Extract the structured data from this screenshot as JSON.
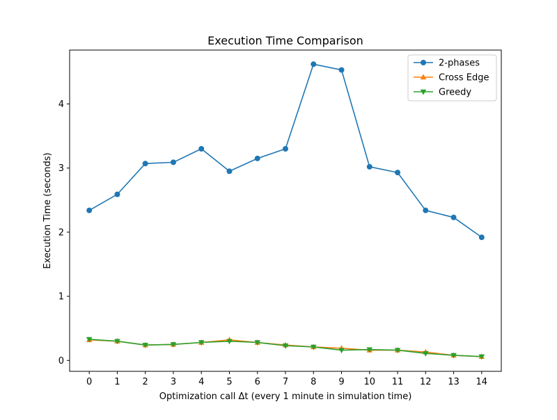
{
  "chart_data": {
    "type": "line",
    "title": "Execution Time Comparison",
    "xlabel": "Optimization call Δt (every 1 minute in simulation time)",
    "ylabel": "Execution Time (seconds)",
    "x": [
      0,
      1,
      2,
      3,
      4,
      5,
      6,
      7,
      8,
      9,
      10,
      11,
      12,
      13,
      14
    ],
    "xlim": [
      -0.7,
      14.7
    ],
    "ylim": [
      -0.17,
      4.84
    ],
    "yticks": [
      0,
      1,
      2,
      3,
      4
    ],
    "grid": false,
    "legend_position": "top-right",
    "series": [
      {
        "name": "2-phases",
        "color": "#1f77b4",
        "marker": "circle",
        "values": [
          2.34,
          2.59,
          3.07,
          3.09,
          3.3,
          2.95,
          3.15,
          3.3,
          4.62,
          4.53,
          3.02,
          2.93,
          2.34,
          2.23,
          1.92
        ]
      },
      {
        "name": "Cross Edge",
        "color": "#ff7f0e",
        "marker": "triangle-up",
        "values": [
          0.32,
          0.3,
          0.24,
          0.25,
          0.28,
          0.32,
          0.28,
          0.24,
          0.21,
          0.19,
          0.16,
          0.16,
          0.13,
          0.08,
          0.06
        ]
      },
      {
        "name": "Greedy",
        "color": "#2ca02c",
        "marker": "triangle-down",
        "values": [
          0.33,
          0.3,
          0.24,
          0.25,
          0.28,
          0.3,
          0.28,
          0.23,
          0.21,
          0.16,
          0.17,
          0.16,
          0.11,
          0.08,
          0.06
        ]
      }
    ]
  }
}
